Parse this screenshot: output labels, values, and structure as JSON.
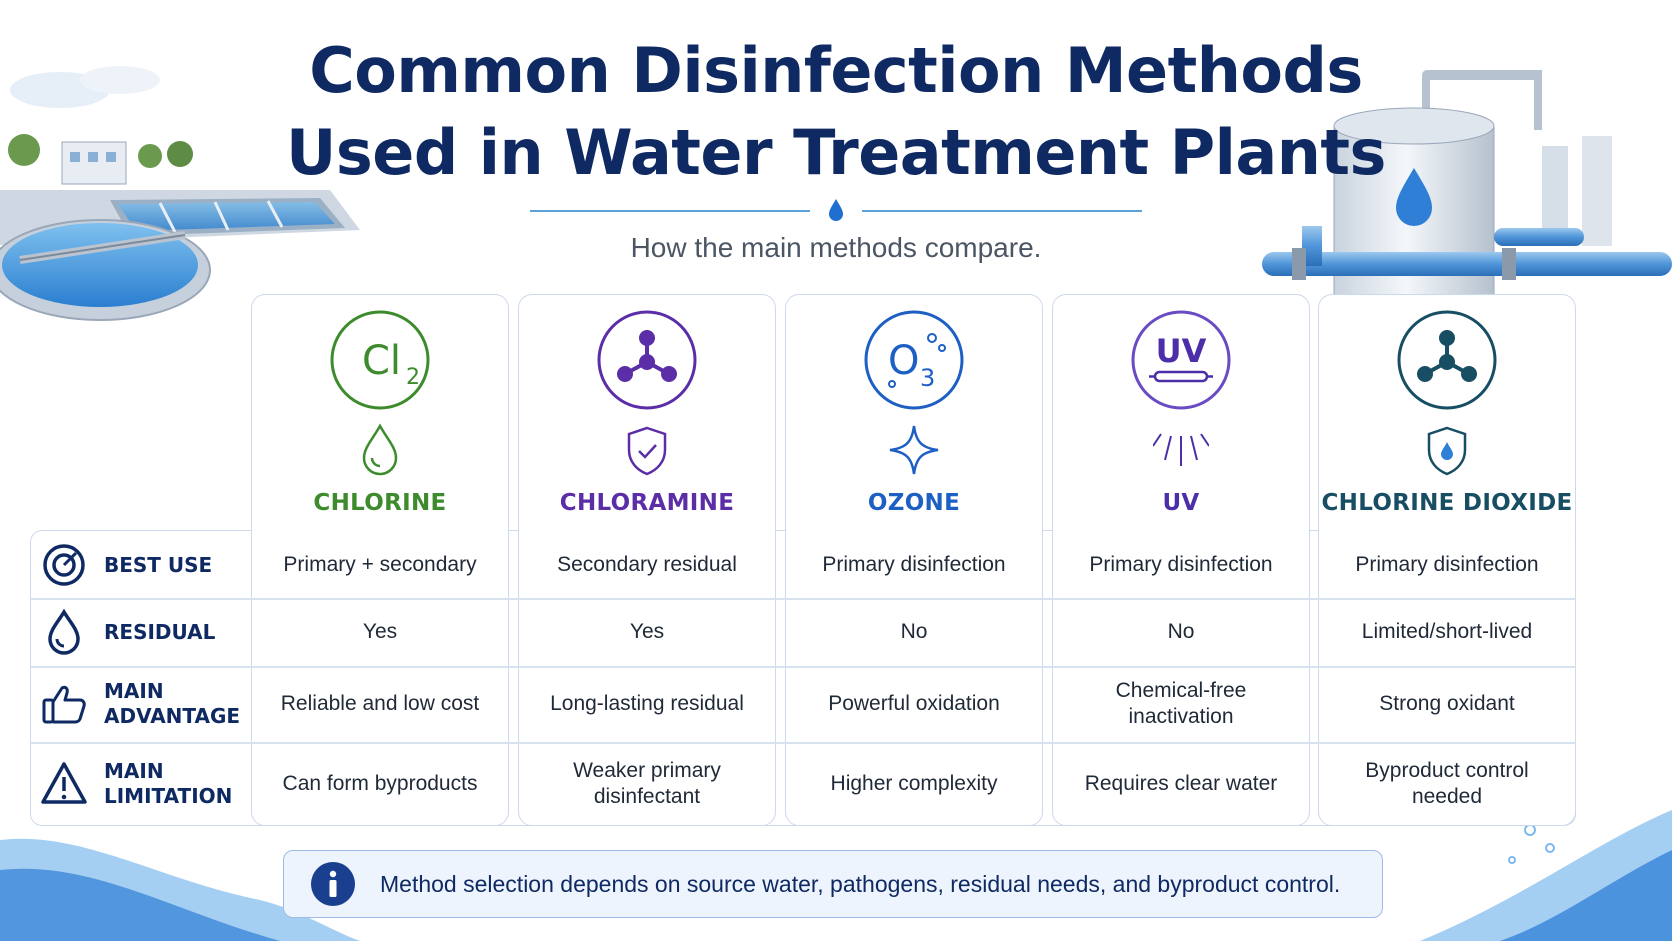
{
  "title": {
    "line1": "Common Disinfection Methods",
    "line2": "Used in Water Treatment Plants"
  },
  "subtitle": "How the main methods compare.",
  "methods": [
    {
      "name": "CHLORINE",
      "big_icon": "cl2-formula-icon",
      "big_text": "Cl",
      "big_sub": "2",
      "small_icon": "water-drop-icon",
      "color": "#3d8b2c"
    },
    {
      "name": "CHLORAMINE",
      "big_icon": "molecule-icon",
      "small_icon": "shield-check-icon",
      "color": "#5b2ea8"
    },
    {
      "name": "OZONE",
      "big_icon": "o3-formula-icon",
      "big_text": "O",
      "big_sub": "3",
      "small_icon": "sparkle-icon",
      "color": "#1e5fc4"
    },
    {
      "name": "UV",
      "big_icon": "uv-lamp-icon",
      "big_text": "UV",
      "small_icon": "light-rays-icon",
      "color": "#4b2ea8"
    },
    {
      "name": "CHLORINE DIOXIDE",
      "big_icon": "molecule-icon",
      "small_icon": "shield-drop-icon",
      "color": "#174e63"
    }
  ],
  "rows": [
    {
      "label": "BEST USE",
      "icon": "target-icon",
      "cells": [
        "Primary + secondary",
        "Secondary residual",
        "Primary disinfection",
        "Primary disinfection",
        "Primary disinfection"
      ]
    },
    {
      "label": "RESIDUAL",
      "icon": "drop-outline-icon",
      "cells": [
        "Yes",
        "Yes",
        "No",
        "No",
        "Limited/short-lived"
      ]
    },
    {
      "label": "MAIN\nADVANTAGE",
      "icon": "thumbs-up-icon",
      "cells": [
        "Reliable and low cost",
        "Long-lasting residual",
        "Powerful oxidation",
        "Chemical-free\ninactivation",
        "Strong oxidant"
      ]
    },
    {
      "label": "MAIN\nLIMITATION",
      "icon": "warning-triangle-icon",
      "cells": [
        "Can form byproducts",
        "Weaker primary\ndisinfectant",
        "Higher complexity",
        "Requires clear water",
        "Byproduct control\nneeded"
      ]
    }
  ],
  "note": {
    "icon": "info-icon",
    "text": "Method selection depends on source water, pathogens, residual needs, and byproduct control."
  },
  "colors": {
    "navy": "#0f2a63",
    "accent_blue": "#1e5fc4",
    "border": "#cdd9ec"
  }
}
